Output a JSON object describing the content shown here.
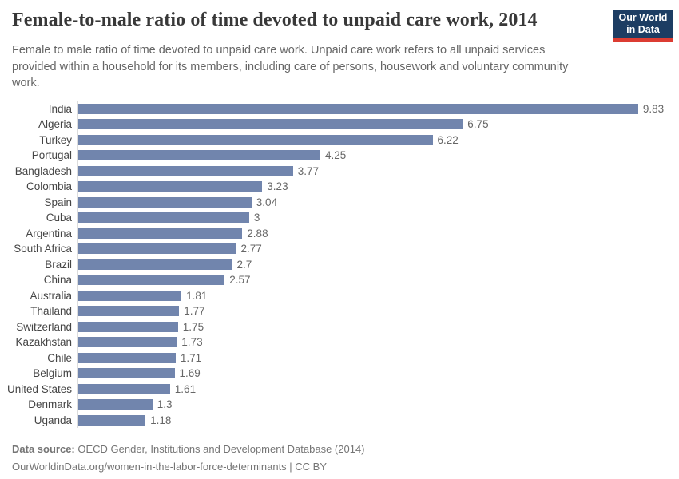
{
  "header": {
    "title": "Female-to-male ratio of time devoted to unpaid care work, 2014",
    "subtitle": "Female to male ratio of time devoted to unpaid care work. Unpaid care work refers to all unpaid services\nprovided within a household for its members, including care of persons, housework and voluntary community\nwork."
  },
  "logo": {
    "line1": "Our World",
    "line2": "in Data",
    "background_color": "#1d3d63",
    "stripe_color": "#dc3c32"
  },
  "chart_data": {
    "type": "bar",
    "orientation": "horizontal",
    "title": "Female-to-male ratio of time devoted to unpaid care work, 2014",
    "categories": [
      "India",
      "Algeria",
      "Turkey",
      "Portugal",
      "Bangladesh",
      "Colombia",
      "Spain",
      "Cuba",
      "Argentina",
      "South Africa",
      "Brazil",
      "China",
      "Australia",
      "Thailand",
      "Switzerland",
      "Kazakhstan",
      "Chile",
      "Belgium",
      "United States",
      "Denmark",
      "Uganda"
    ],
    "values": [
      9.83,
      6.75,
      6.22,
      4.25,
      3.77,
      3.23,
      3.04,
      3,
      2.88,
      2.77,
      2.7,
      2.57,
      1.81,
      1.77,
      1.75,
      1.73,
      1.71,
      1.69,
      1.61,
      1.3,
      1.18
    ],
    "value_labels": [
      "9.83",
      "6.75",
      "6.22",
      "4.25",
      "3.77",
      "3.23",
      "3.04",
      "3",
      "2.88",
      "2.77",
      "2.7",
      "2.57",
      "1.81",
      "1.77",
      "1.75",
      "1.73",
      "1.71",
      "1.69",
      "1.61",
      "1.3",
      "1.18"
    ],
    "xlim": [
      0,
      9.83
    ],
    "grid": false,
    "legend": "none",
    "bar_color": "#7185ad"
  },
  "footer": {
    "source_label": "Data source:",
    "source_value": " OECD Gender, Institutions and Development Database (2014)",
    "citation": "OurWorldinData.org/women-in-the-labor-force-determinants | CC BY"
  }
}
